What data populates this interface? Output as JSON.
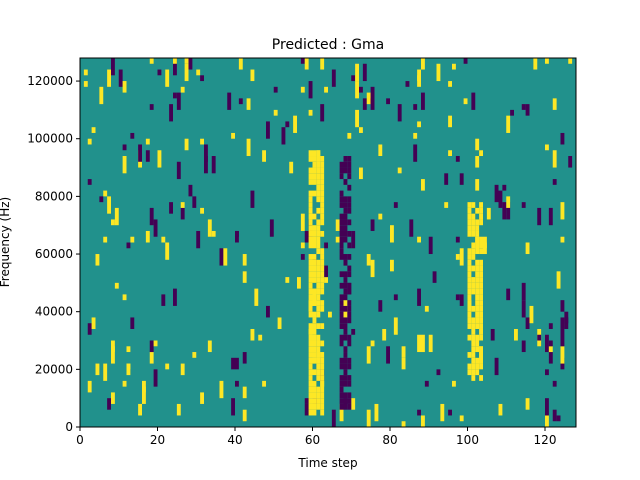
{
  "chart_data": {
    "type": "heatmap",
    "title": "Predicted : Gma",
    "xlabel": "Time step",
    "ylabel": "Frequency (Hz)",
    "xlim": [
      0,
      128
    ],
    "ylim": [
      0,
      128000
    ],
    "xticks": [
      0,
      20,
      40,
      60,
      80,
      100,
      120
    ],
    "xtick_labels": [
      "0",
      "20",
      "40",
      "60",
      "80",
      "100",
      "120"
    ],
    "yticks": [
      0,
      20000,
      40000,
      60000,
      80000,
      100000,
      120000
    ],
    "ytick_labels": [
      "0",
      "20000",
      "40000",
      "60000",
      "80000",
      "100000",
      "120000"
    ],
    "colormap": {
      "low": "#440154",
      "mid": "#21918c",
      "high": "#fde725"
    },
    "background_level": "mid",
    "yellow_bands": [
      {
        "x": [
          59,
          63
        ],
        "y": [
          4000,
          96000
        ]
      },
      {
        "x": [
          100,
          104
        ],
        "y": [
          16000,
          78000
        ]
      }
    ],
    "purple_bands": [
      {
        "x": [
          67,
          70
        ],
        "y": [
          6000,
          94000
        ]
      }
    ]
  }
}
